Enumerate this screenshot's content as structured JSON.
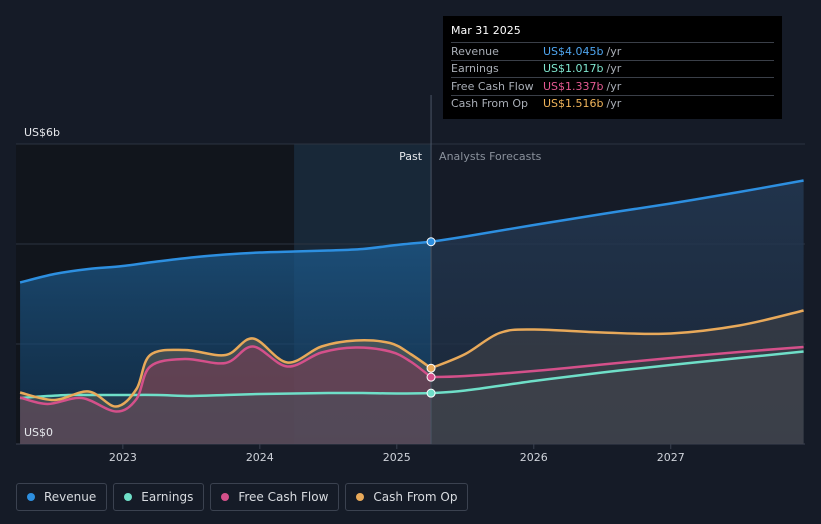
{
  "tooltip": {
    "date": "Mar 31 2025",
    "rows": [
      {
        "label": "Revenue",
        "value": "US$4.045b",
        "unit": "/yr",
        "color": "#4fa6f0"
      },
      {
        "label": "Earnings",
        "value": "US$1.017b",
        "unit": "/yr",
        "color": "#7fe6cf"
      },
      {
        "label": "Free Cash Flow",
        "value": "US$1.337b",
        "unit": "/yr",
        "color": "#e55a92"
      },
      {
        "label": "Cash From Op",
        "value": "US$1.516b",
        "unit": "/yr",
        "color": "#f0b45a"
      }
    ]
  },
  "legend": [
    {
      "label": "Revenue",
      "color": "#2d8fe0"
    },
    {
      "label": "Earnings",
      "color": "#6fdfc8"
    },
    {
      "label": "Free Cash Flow",
      "color": "#d4508a"
    },
    {
      "label": "Cash From Op",
      "color": "#e8a95a"
    }
  ],
  "chart_data": {
    "type": "area",
    "y_axis_top_label": "US$6b",
    "y_axis_bottom_label": "US$0",
    "ylim": [
      0,
      6
    ],
    "xlim": [
      2022.22,
      2027.98
    ],
    "past_label": "Past",
    "forecast_label": "Analysts Forecasts",
    "divider_x": 2025.25,
    "shaded_past_start": 2024.25,
    "x_ticks": [
      {
        "label": "2023",
        "x": 2023.0
      },
      {
        "label": "2024",
        "x": 2024.0
      },
      {
        "label": "2025",
        "x": 2025.0
      },
      {
        "label": "2026",
        "x": 2026.0
      },
      {
        "label": "2027",
        "x": 2027.0
      }
    ],
    "series": [
      {
        "name": "Revenue",
        "color": "#2d8fe0",
        "past": [
          [
            2022.25,
            3.23
          ],
          [
            2022.5,
            3.4
          ],
          [
            2022.75,
            3.5
          ],
          [
            2023.0,
            3.56
          ],
          [
            2023.25,
            3.65
          ],
          [
            2023.5,
            3.73
          ],
          [
            2023.75,
            3.79
          ],
          [
            2024.0,
            3.83
          ],
          [
            2024.25,
            3.85
          ],
          [
            2024.5,
            3.87
          ],
          [
            2024.75,
            3.9
          ],
          [
            2025.0,
            3.98
          ],
          [
            2025.25,
            4.045
          ]
        ],
        "forecast": [
          [
            2025.25,
            4.045
          ],
          [
            2025.5,
            4.15
          ],
          [
            2026.0,
            4.38
          ],
          [
            2026.5,
            4.6
          ],
          [
            2027.0,
            4.81
          ],
          [
            2027.5,
            5.04
          ],
          [
            2027.97,
            5.27
          ]
        ]
      },
      {
        "name": "Earnings",
        "color": "#6fdfc8",
        "past": [
          [
            2022.25,
            0.92
          ],
          [
            2022.4,
            0.95
          ],
          [
            2022.6,
            0.98
          ],
          [
            2022.8,
            0.98
          ],
          [
            2023.0,
            0.98
          ],
          [
            2023.25,
            0.98
          ],
          [
            2023.5,
            0.96
          ],
          [
            2023.75,
            0.98
          ],
          [
            2024.0,
            1.0
          ],
          [
            2024.25,
            1.01
          ],
          [
            2024.5,
            1.02
          ],
          [
            2024.75,
            1.02
          ],
          [
            2025.0,
            1.01
          ],
          [
            2025.25,
            1.017
          ]
        ],
        "forecast": [
          [
            2025.25,
            1.017
          ],
          [
            2025.5,
            1.07
          ],
          [
            2026.0,
            1.26
          ],
          [
            2026.5,
            1.43
          ],
          [
            2027.0,
            1.58
          ],
          [
            2027.5,
            1.72
          ],
          [
            2027.97,
            1.85
          ]
        ]
      },
      {
        "name": "Free Cash Flow",
        "color": "#d4508a",
        "past": [
          [
            2022.25,
            0.93
          ],
          [
            2022.45,
            0.8
          ],
          [
            2022.7,
            0.92
          ],
          [
            2022.95,
            0.65
          ],
          [
            2023.1,
            0.9
          ],
          [
            2023.2,
            1.55
          ],
          [
            2023.45,
            1.7
          ],
          [
            2023.75,
            1.62
          ],
          [
            2023.95,
            1.95
          ],
          [
            2024.2,
            1.55
          ],
          [
            2024.45,
            1.83
          ],
          [
            2024.7,
            1.93
          ],
          [
            2024.95,
            1.85
          ],
          [
            2025.1,
            1.65
          ],
          [
            2025.25,
            1.337
          ]
        ],
        "forecast": [
          [
            2025.25,
            1.337
          ],
          [
            2025.5,
            1.36
          ],
          [
            2026.0,
            1.46
          ],
          [
            2026.5,
            1.59
          ],
          [
            2027.0,
            1.72
          ],
          [
            2027.5,
            1.84
          ],
          [
            2027.97,
            1.94
          ]
        ]
      },
      {
        "name": "Cash From Op",
        "color": "#e8a95a",
        "past": [
          [
            2022.25,
            1.03
          ],
          [
            2022.5,
            0.88
          ],
          [
            2022.75,
            1.05
          ],
          [
            2022.95,
            0.75
          ],
          [
            2023.1,
            1.1
          ],
          [
            2023.2,
            1.78
          ],
          [
            2023.45,
            1.88
          ],
          [
            2023.75,
            1.78
          ],
          [
            2023.95,
            2.11
          ],
          [
            2024.2,
            1.63
          ],
          [
            2024.45,
            1.95
          ],
          [
            2024.7,
            2.07
          ],
          [
            2024.95,
            2.02
          ],
          [
            2025.1,
            1.8
          ],
          [
            2025.25,
            1.516
          ]
        ],
        "forecast": [
          [
            2025.25,
            1.516
          ],
          [
            2025.5,
            1.8
          ],
          [
            2025.75,
            2.22
          ],
          [
            2026.0,
            2.29
          ],
          [
            2026.5,
            2.23
          ],
          [
            2027.0,
            2.21
          ],
          [
            2027.5,
            2.37
          ],
          [
            2027.97,
            2.67
          ]
        ]
      }
    ]
  }
}
